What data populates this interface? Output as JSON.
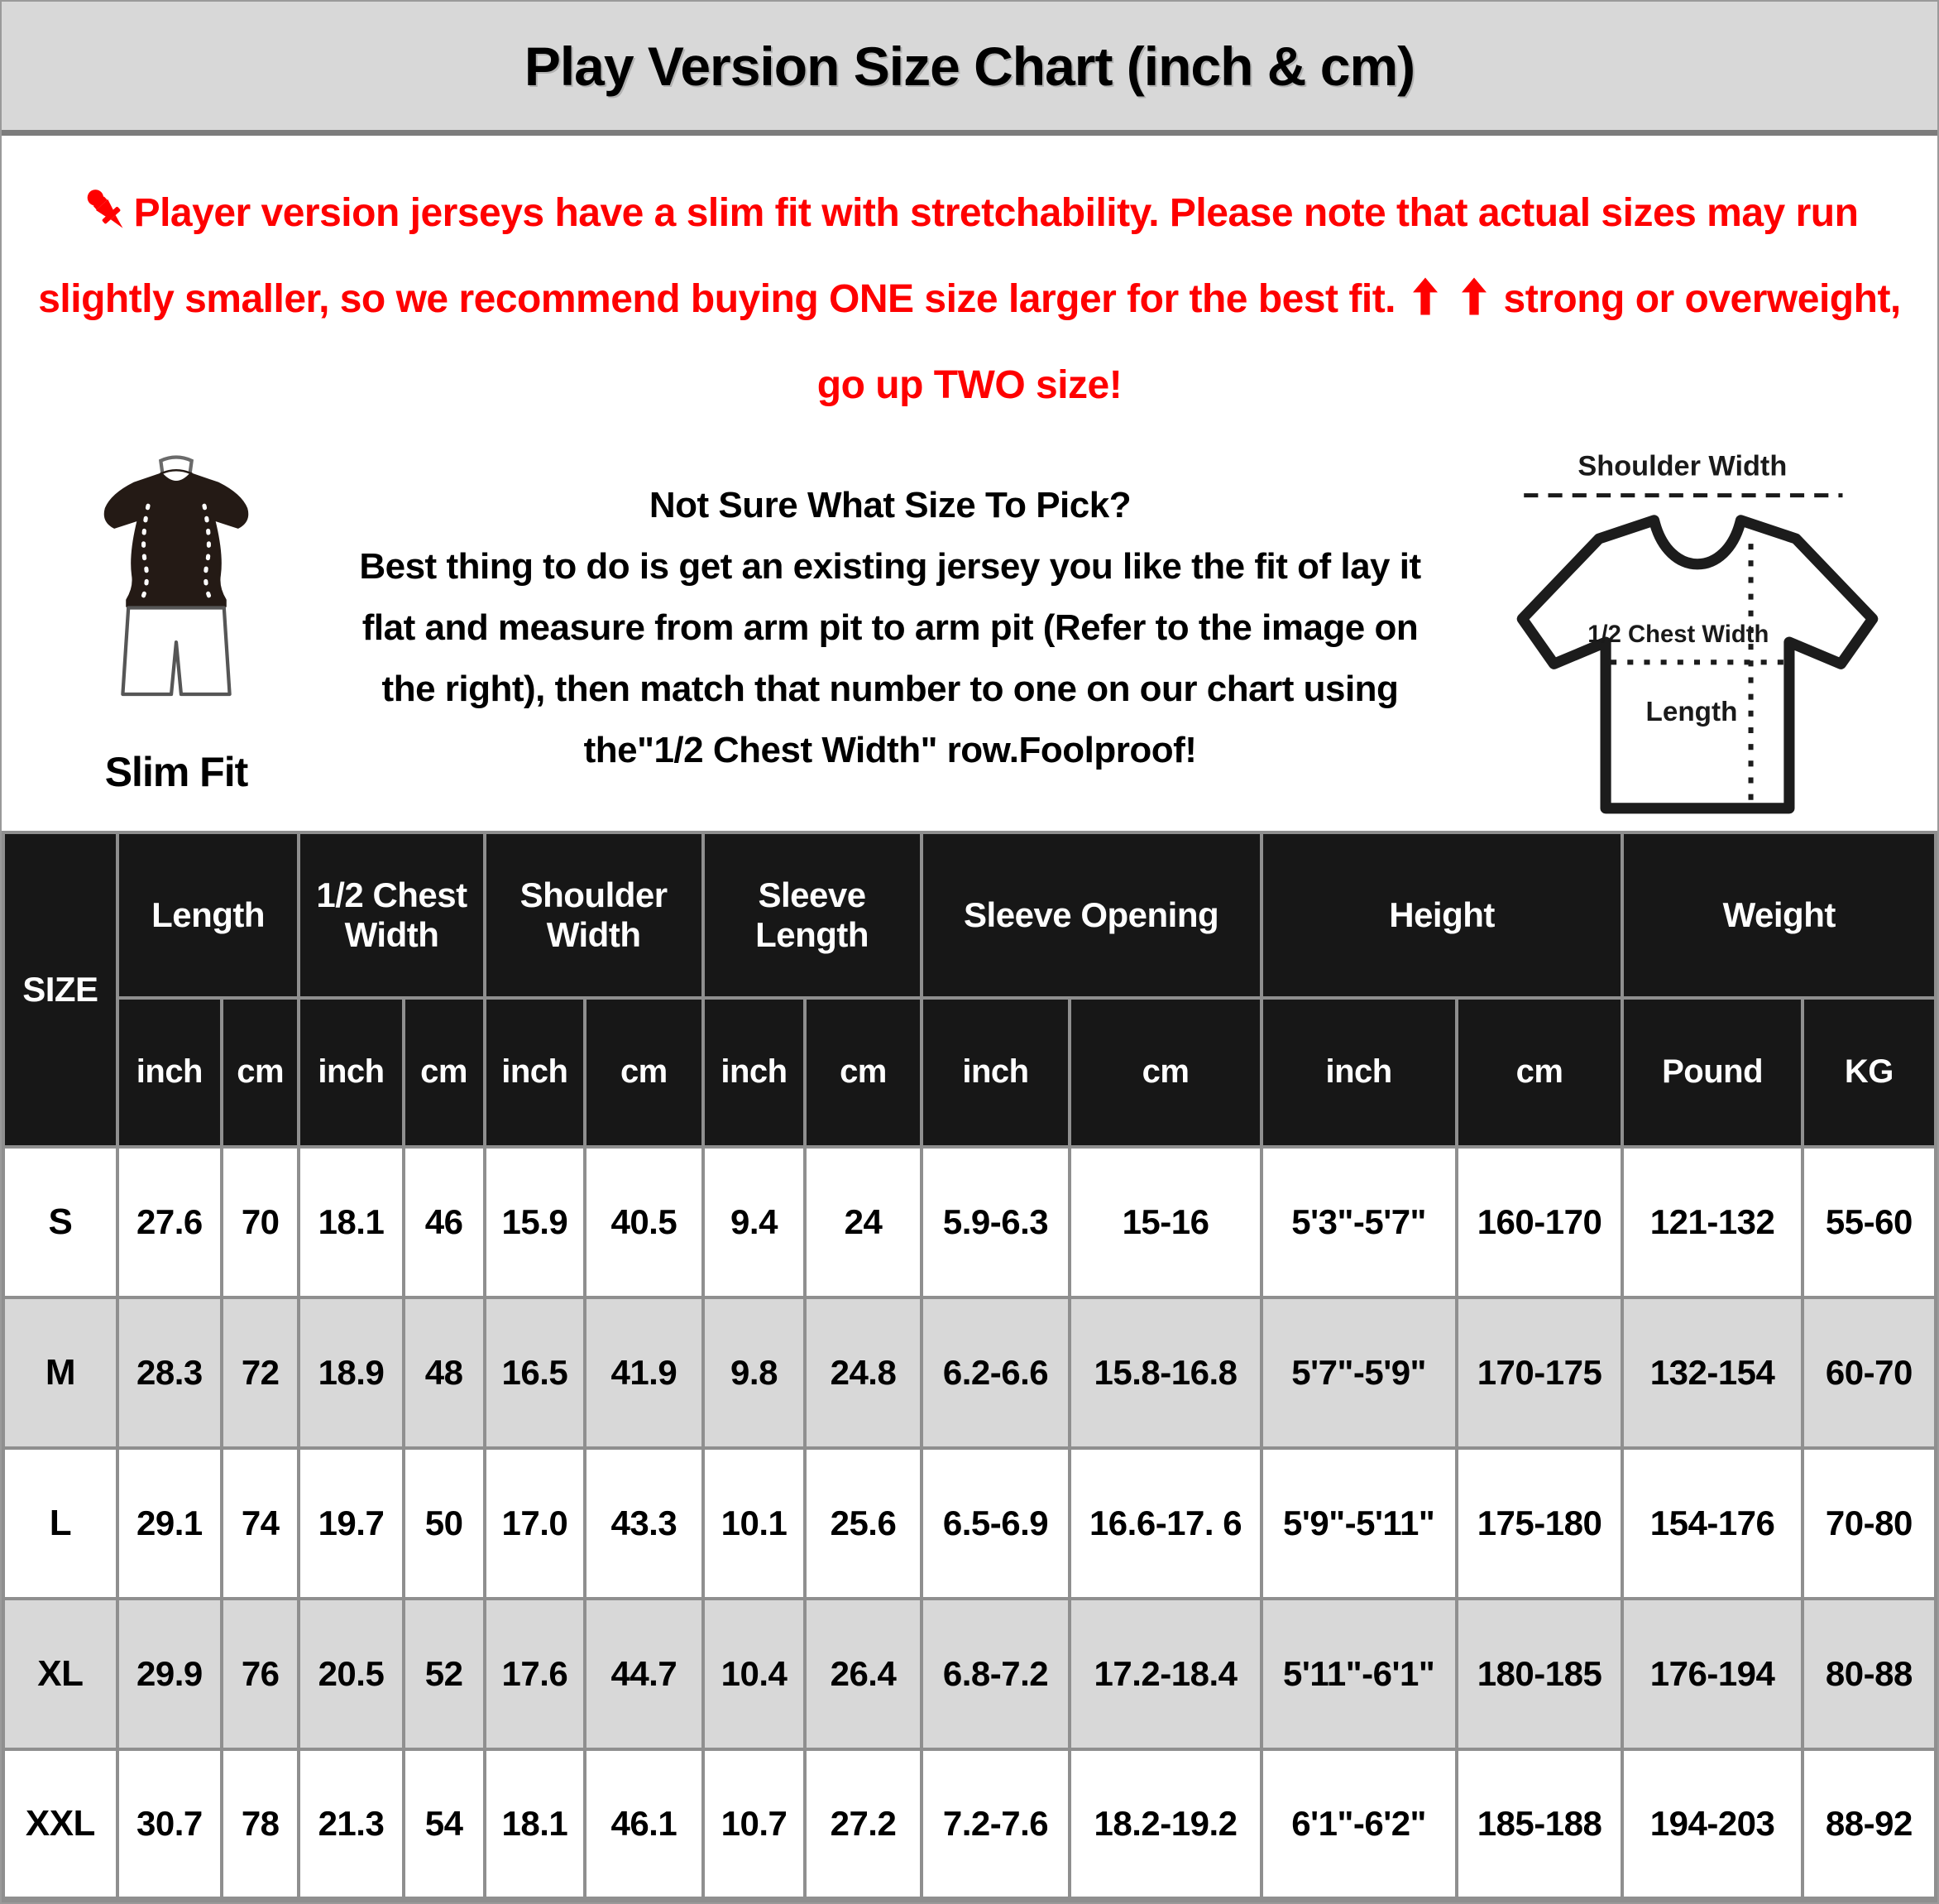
{
  "page": {
    "title": "Play Version Size Chart (inch & cm)"
  },
  "colors": {
    "accent_red": "#fe0000",
    "header_bg": "#171717",
    "titlebar_bg": "#d8d8d8",
    "row_alt_bg": "#d8d8d8",
    "gridline": "#8f8f8f"
  },
  "icons": {
    "pushpin": "📌",
    "up_arrow": "⬆",
    "slim_fit_figure": "short-sleeve shirt on figure with shorts",
    "tshirt_diagram": "t-shirt outline with measurement lines"
  },
  "note": {
    "part1": "Player version jerseys have a slim fit with stretchability. Please note that actual sizes may run slightly smaller, so we recommend buying ONE size larger for the best fit.",
    "part2": "strong or overweight, go up TWO size!"
  },
  "fit_figure": {
    "label": "Slim Fit"
  },
  "guide": {
    "heading": "Not Sure What Size To Pick?",
    "body": "Best thing to do is get an existing jersey you like the fit of lay it flat and measure from arm pit to arm pit (Refer to the image on the right), then match that number to one on our chart using the\"1/2 Chest Width\" row.Foolproof!"
  },
  "diagram": {
    "shoulder_label": "Shoulder Width",
    "chest_label": "1/2 Chest Width",
    "length_label": "Length"
  },
  "table": {
    "size_header": "SIZE",
    "groups": [
      {
        "label": "Length",
        "units": [
          "inch",
          "cm"
        ]
      },
      {
        "label": "1/2 Chest Width",
        "units": [
          "inch",
          "cm"
        ]
      },
      {
        "label": "Shoulder Width",
        "units": [
          "inch",
          "cm"
        ]
      },
      {
        "label": "Sleeve Length",
        "units": [
          "inch",
          "cm"
        ]
      },
      {
        "label": "Sleeve Opening",
        "units": [
          "inch",
          "cm"
        ]
      },
      {
        "label": "Height",
        "units": [
          "inch",
          "cm"
        ]
      },
      {
        "label": "Weight",
        "units": [
          "Pound",
          "KG"
        ]
      }
    ],
    "rows": [
      {
        "size": "S",
        "values": [
          "27.6",
          "70",
          "18.1",
          "46",
          "15.9",
          "40.5",
          "9.4",
          "24",
          "5.9-6.3",
          "15-16",
          "5'3\"-5'7\"",
          "160-170",
          "121-132",
          "55-60"
        ]
      },
      {
        "size": "M",
        "values": [
          "28.3",
          "72",
          "18.9",
          "48",
          "16.5",
          "41.9",
          "9.8",
          "24.8",
          "6.2-6.6",
          "15.8-16.8",
          "5'7\"-5'9\"",
          "170-175",
          "132-154",
          "60-70"
        ]
      },
      {
        "size": "L",
        "values": [
          "29.1",
          "74",
          "19.7",
          "50",
          "17.0",
          "43.3",
          "10.1",
          "25.6",
          "6.5-6.9",
          "16.6-17. 6",
          "5'9\"-5'11\"",
          "175-180",
          "154-176",
          "70-80"
        ]
      },
      {
        "size": "XL",
        "values": [
          "29.9",
          "76",
          "20.5",
          "52",
          "17.6",
          "44.7",
          "10.4",
          "26.4",
          "6.8-7.2",
          "17.2-18.4",
          "5'11\"-6'1\"",
          "180-185",
          "176-194",
          "80-88"
        ]
      },
      {
        "size": "XXL",
        "values": [
          "30.7",
          "78",
          "21.3",
          "54",
          "18.1",
          "46.1",
          "10.7",
          "27.2",
          "7.2-7.6",
          "18.2-19.2",
          "6'1\"-6'2\"",
          "185-188",
          "194-203",
          "88-92"
        ]
      }
    ]
  }
}
